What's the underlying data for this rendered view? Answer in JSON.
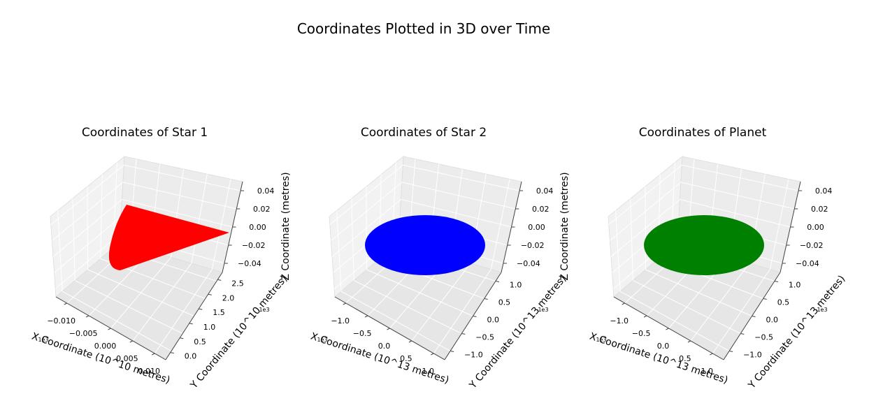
{
  "figure": {
    "suptitle": "Coordinates Plotted in 3D over Time"
  },
  "chart_data": [
    {
      "type": "scatter3d",
      "title": "Coordinates of Star 1",
      "color": "#ff0000",
      "shape": "wedge",
      "xlabel": "X Coordinate (10^10 metres)",
      "ylabel": "Y Coordinate (10^10 metres)",
      "zlabel": "Z Coordinate (metres)",
      "x_ticks": [
        "−0.010",
        "−0.005",
        "0.000",
        "0.005",
        "0.010"
      ],
      "y_ticks": [
        "0.0",
        "0.5",
        "1.0",
        "1.5",
        "2.0",
        "2.5"
      ],
      "z_ticks": [
        "0.04",
        "0.02",
        "0.00",
        "−0.02",
        "−0.04"
      ],
      "x_offset": "1e3",
      "y_offset": "1e3",
      "xlim": [
        -0.013,
        0.013
      ],
      "ylim": [
        -0.1,
        2.8
      ],
      "zlim": [
        -0.05,
        0.05
      ]
    },
    {
      "type": "scatter3d",
      "title": "Coordinates of Star 2",
      "color": "#0000ff",
      "shape": "disk",
      "xlabel": "X Coordinate (10^13 metres)",
      "ylabel": "Y Coordinate (10^13 metres)",
      "zlabel": "Z Coordinate (metres)",
      "x_ticks": [
        "−1.0",
        "−0.5",
        "0.0",
        "0.5",
        "1.0"
      ],
      "y_ticks": [
        "−1.0",
        "−0.5",
        "0.0",
        "0.5",
        "1.0"
      ],
      "z_ticks": [
        "0.04",
        "0.02",
        "0.00",
        "−0.02",
        "−0.04"
      ],
      "x_offset": "1e3",
      "y_offset": "1e3",
      "xlim": [
        -1.3,
        1.3
      ],
      "ylim": [
        -1.3,
        1.3
      ],
      "zlim": [
        -0.05,
        0.05
      ]
    },
    {
      "type": "scatter3d",
      "title": "Coordinates of Planet",
      "color": "#008000",
      "shape": "disk",
      "xlabel": "X Coordinate (10^13 metres)",
      "ylabel": "Y Coordinate (10^13 metres)",
      "zlabel": "",
      "x_ticks": [
        "−1.0",
        "−0.5",
        "0.0",
        "0.5",
        "1.0"
      ],
      "y_ticks": [
        "−1.0",
        "−0.5",
        "0.0",
        "0.5",
        "1.0"
      ],
      "z_ticks": [
        "0.04",
        "0.02",
        "0.00",
        "−0.02",
        "−0.04"
      ],
      "x_offset": "1e3",
      "y_offset": "1e3",
      "xlim": [
        -1.3,
        1.3
      ],
      "ylim": [
        -1.3,
        1.3
      ],
      "zlim": [
        -0.05,
        0.05
      ]
    }
  ]
}
